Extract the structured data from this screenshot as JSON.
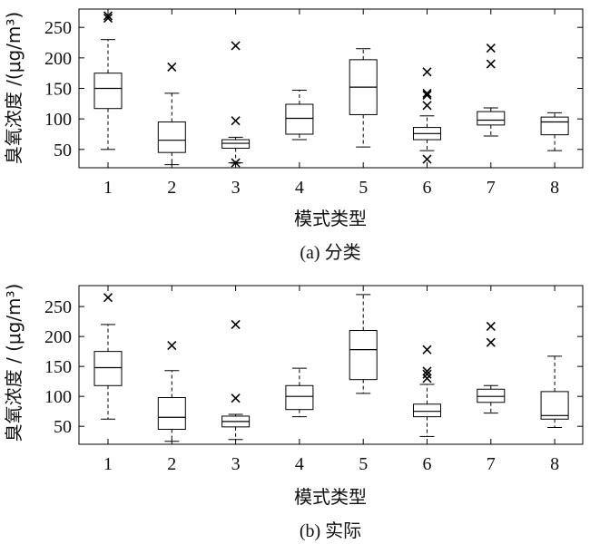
{
  "chart_data": [
    {
      "type": "box",
      "caption": "(a) 分类",
      "xlabel": "模式类型",
      "ylabel": "臭氧浓度 /(μg/m³)",
      "ylim": [
        20,
        280
      ],
      "yticks": [
        50,
        100,
        150,
        200,
        250
      ],
      "categories": [
        "1",
        "2",
        "3",
        "4",
        "5",
        "6",
        "7",
        "8"
      ],
      "boxes": [
        {
          "q1": 117,
          "median": 150,
          "q3": 175,
          "whisker_low": 50,
          "whisker_high": 230,
          "outliers": [
            {
              "v": 265,
              "m": "x"
            },
            {
              "v": 269,
              "m": "x"
            }
          ]
        },
        {
          "q1": 45,
          "median": 65,
          "q3": 95,
          "whisker_low": 25,
          "whisker_high": 142,
          "outliers": [
            {
              "v": 185,
              "m": "x"
            }
          ]
        },
        {
          "q1": 52,
          "median": 60,
          "q3": 66,
          "whisker_low": 28,
          "whisker_high": 70,
          "outliers": [
            {
              "v": 220,
              "m": "x"
            },
            {
              "v": 97,
              "m": "x"
            },
            {
              "v": 28,
              "m": "star"
            }
          ]
        },
        {
          "q1": 75,
          "median": 101,
          "q3": 124,
          "whisker_low": 66,
          "whisker_high": 147,
          "outliers": []
        },
        {
          "q1": 107,
          "median": 152,
          "q3": 197,
          "whisker_low": 54,
          "whisker_high": 215,
          "outliers": []
        },
        {
          "q1": 66,
          "median": 76,
          "q3": 86,
          "whisker_low": 48,
          "whisker_high": 105,
          "outliers": [
            {
              "v": 177,
              "m": "x"
            },
            {
              "v": 142,
              "m": "x"
            },
            {
              "v": 139,
              "m": "x"
            },
            {
              "v": 122,
              "m": "x"
            },
            {
              "v": 34,
              "m": "x"
            }
          ]
        },
        {
          "q1": 90,
          "median": 98,
          "q3": 112,
          "whisker_low": 72,
          "whisker_high": 118,
          "outliers": [
            {
              "v": 216,
              "m": "x"
            },
            {
              "v": 190,
              "m": "x"
            }
          ]
        },
        {
          "q1": 74,
          "median": 95,
          "q3": 103,
          "whisker_low": 48,
          "whisker_high": 110,
          "outliers": []
        }
      ]
    },
    {
      "type": "box",
      "caption": "(b) 实际",
      "xlabel": "模式类型",
      "ylabel": "臭氧浓度 / (μg/m³)",
      "ylim": [
        20,
        285
      ],
      "yticks": [
        50,
        100,
        150,
        200,
        250
      ],
      "categories": [
        "1",
        "2",
        "3",
        "4",
        "5",
        "6",
        "7",
        "8"
      ],
      "boxes": [
        {
          "q1": 118,
          "median": 148,
          "q3": 175,
          "whisker_low": 62,
          "whisker_high": 220,
          "outliers": [
            {
              "v": 265,
              "m": "x"
            }
          ]
        },
        {
          "q1": 45,
          "median": 65,
          "q3": 98,
          "whisker_low": 25,
          "whisker_high": 143,
          "outliers": [
            {
              "v": 185,
              "m": "x"
            }
          ]
        },
        {
          "q1": 49,
          "median": 58,
          "q3": 67,
          "whisker_low": 28,
          "whisker_high": 70,
          "outliers": [
            {
              "v": 220,
              "m": "x"
            },
            {
              "v": 97,
              "m": "x"
            }
          ]
        },
        {
          "q1": 78,
          "median": 100,
          "q3": 118,
          "whisker_low": 66,
          "whisker_high": 147,
          "outliers": []
        },
        {
          "q1": 128,
          "median": 178,
          "q3": 210,
          "whisker_low": 105,
          "whisker_high": 270,
          "outliers": []
        },
        {
          "q1": 66,
          "median": 75,
          "q3": 87,
          "whisker_low": 33,
          "whisker_high": 120,
          "outliers": [
            {
              "v": 178,
              "m": "x"
            },
            {
              "v": 142,
              "m": "x"
            },
            {
              "v": 137,
              "m": "x"
            },
            {
              "v": 130,
              "m": "x"
            }
          ]
        },
        {
          "q1": 90,
          "median": 100,
          "q3": 112,
          "whisker_low": 72,
          "whisker_high": 118,
          "outliers": [
            {
              "v": 217,
              "m": "x"
            },
            {
              "v": 190,
              "m": "x"
            }
          ]
        },
        {
          "q1": 62,
          "median": 68,
          "q3": 108,
          "whisker_low": 48,
          "whisker_high": 167,
          "outliers": []
        }
      ]
    }
  ]
}
